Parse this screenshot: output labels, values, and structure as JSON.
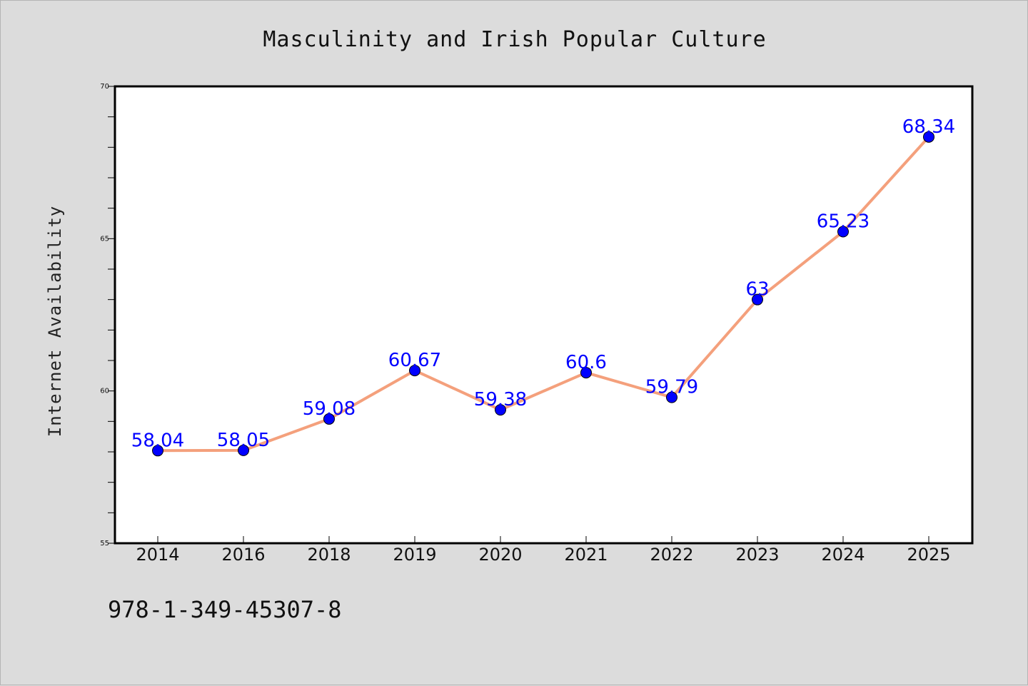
{
  "chart_data": {
    "type": "line",
    "title": "Masculinity and Irish Popular Culture",
    "ylabel": "Internet Availability",
    "xlabel": "",
    "categories": [
      "2014",
      "2016",
      "2018",
      "2019",
      "2020",
      "2021",
      "2022",
      "2023",
      "2024",
      "2025"
    ],
    "series": [
      {
        "values": [
          58.04,
          58.05,
          59.08,
          60.67,
          59.38,
          60.6,
          59.79,
          63,
          65.23,
          68.34
        ],
        "labels": [
          "58.04",
          "58.05",
          "59.08",
          "60.67",
          "59.38",
          "60.6",
          "59.79",
          "63",
          "65.23",
          "68.34"
        ]
      }
    ],
    "ylim": [
      55,
      70
    ],
    "yticks": [
      "55",
      "60",
      "65",
      "70"
    ],
    "grid": false,
    "legend": "none",
    "line_color": "#f4a07c",
    "marker_color": "#0000ff",
    "label_color": "#0000ff",
    "background": "#dcdcdc",
    "plot_background": "#ffffff"
  },
  "footer": {
    "isbn": "978-1-349-45307-8"
  }
}
